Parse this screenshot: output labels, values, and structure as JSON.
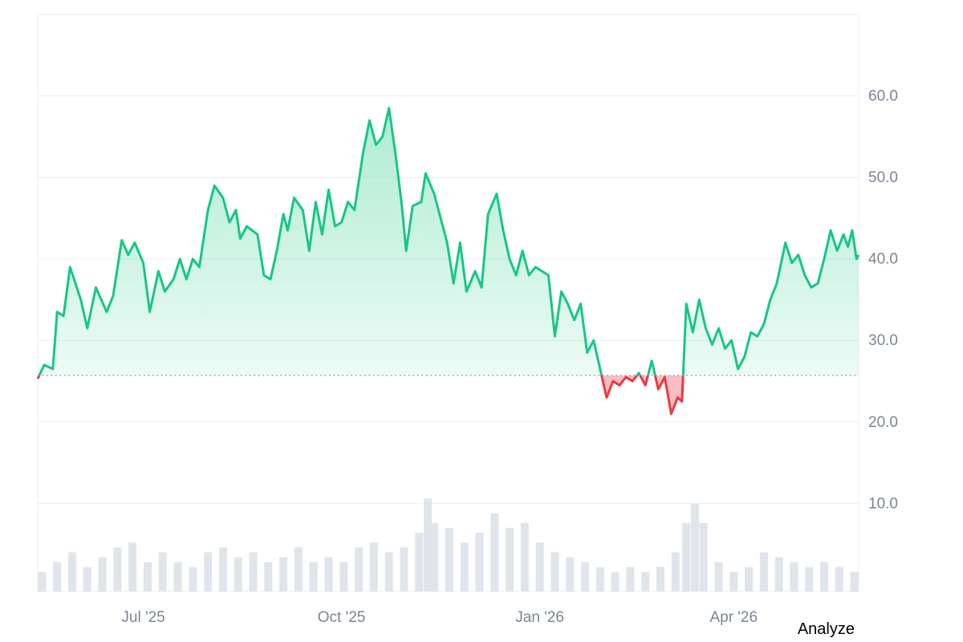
{
  "colors": {
    "up_line": "#16c784",
    "down_line": "#ea3943",
    "up_fill": "#16c784",
    "down_fill": "#ea3943",
    "grid": "#e9edf1",
    "baseline": "#8f98a3",
    "tick_text": "#7a8594",
    "volume": "#dfe5ea"
  },
  "footer": {
    "analyze_label": "Analyze"
  },
  "chart_data": {
    "type": "area",
    "title": "",
    "xlabel": "",
    "ylabel": "",
    "grid": true,
    "legend": "none",
    "ylim": [
      -0.8,
      70
    ],
    "y_ticks": [
      {
        "value": 10,
        "label": "10.0"
      },
      {
        "value": 20,
        "label": "20.0"
      },
      {
        "value": 30,
        "label": "30.0"
      },
      {
        "value": 40,
        "label": "40.0"
      },
      {
        "value": 50,
        "label": "50.0"
      },
      {
        "value": 60,
        "label": "60.0"
      }
    ],
    "xlim": [
      "2025-05-13",
      "2026-05-29"
    ],
    "x_ticks": [
      {
        "date": "2025-07-01",
        "label": "Jul '25"
      },
      {
        "date": "2025-10-01",
        "label": "Oct '25"
      },
      {
        "date": "2026-01-01",
        "label": "Jan '26"
      },
      {
        "date": "2026-04-01",
        "label": "Apr '26"
      }
    ],
    "baseline": 25.7,
    "series": [
      {
        "values": [
          [
            "2025-05-13",
            25.3
          ],
          [
            "2025-05-16",
            27.0
          ],
          [
            "2025-05-20",
            26.5
          ],
          [
            "2025-05-22",
            33.5
          ],
          [
            "2025-05-25",
            33.0
          ],
          [
            "2025-05-28",
            39.0
          ],
          [
            "2025-06-02",
            35.0
          ],
          [
            "2025-06-05",
            31.5
          ],
          [
            "2025-06-09",
            36.5
          ],
          [
            "2025-06-14",
            33.5
          ],
          [
            "2025-06-17",
            35.5
          ],
          [
            "2025-06-21",
            42.3
          ],
          [
            "2025-06-24",
            40.5
          ],
          [
            "2025-06-27",
            42.0
          ],
          [
            "2025-07-01",
            39.5
          ],
          [
            "2025-07-04",
            33.5
          ],
          [
            "2025-07-08",
            38.5
          ],
          [
            "2025-07-11",
            36.0
          ],
          [
            "2025-07-15",
            37.5
          ],
          [
            "2025-07-18",
            40.0
          ],
          [
            "2025-07-21",
            37.5
          ],
          [
            "2025-07-24",
            40.0
          ],
          [
            "2025-07-27",
            39.0
          ],
          [
            "2025-07-31",
            46.0
          ],
          [
            "2025-08-03",
            49.0
          ],
          [
            "2025-08-07",
            47.5
          ],
          [
            "2025-08-10",
            44.5
          ],
          [
            "2025-08-13",
            46.0
          ],
          [
            "2025-08-15",
            42.5
          ],
          [
            "2025-08-18",
            44.0
          ],
          [
            "2025-08-23",
            43.0
          ],
          [
            "2025-08-26",
            38.0
          ],
          [
            "2025-08-29",
            37.5
          ],
          [
            "2025-09-01",
            41.0
          ],
          [
            "2025-09-04",
            45.5
          ],
          [
            "2025-09-06",
            43.5
          ],
          [
            "2025-09-09",
            47.5
          ],
          [
            "2025-09-13",
            46.0
          ],
          [
            "2025-09-16",
            41.0
          ],
          [
            "2025-09-19",
            47.0
          ],
          [
            "2025-09-22",
            43.0
          ],
          [
            "2025-09-25",
            48.5
          ],
          [
            "2025-09-28",
            44.0
          ],
          [
            "2025-10-01",
            44.5
          ],
          [
            "2025-10-04",
            47.0
          ],
          [
            "2025-10-07",
            46.0
          ],
          [
            "2025-10-11",
            53.0
          ],
          [
            "2025-10-14",
            57.0
          ],
          [
            "2025-10-17",
            54.0
          ],
          [
            "2025-10-20",
            55.0
          ],
          [
            "2025-10-23",
            58.5
          ],
          [
            "2025-10-26",
            53.0
          ],
          [
            "2025-10-29",
            46.5
          ],
          [
            "2025-10-31",
            41.0
          ],
          [
            "2025-11-03",
            46.5
          ],
          [
            "2025-11-07",
            47.0
          ],
          [
            "2025-11-09",
            50.5
          ],
          [
            "2025-11-13",
            48.0
          ],
          [
            "2025-11-16",
            45.0
          ],
          [
            "2025-11-19",
            42.0
          ],
          [
            "2025-11-22",
            37.0
          ],
          [
            "2025-11-25",
            42.0
          ],
          [
            "2025-11-28",
            36.0
          ],
          [
            "2025-12-02",
            38.5
          ],
          [
            "2025-12-05",
            36.5
          ],
          [
            "2025-12-08",
            45.5
          ],
          [
            "2025-12-12",
            48.0
          ],
          [
            "2025-12-15",
            43.5
          ],
          [
            "2025-12-18",
            40.0
          ],
          [
            "2025-12-21",
            38.0
          ],
          [
            "2025-12-24",
            41.0
          ],
          [
            "2025-12-27",
            38.0
          ],
          [
            "2025-12-30",
            39.0
          ],
          [
            "2026-01-02",
            38.5
          ],
          [
            "2026-01-05",
            38.0
          ],
          [
            "2026-01-08",
            30.5
          ],
          [
            "2026-01-11",
            36.0
          ],
          [
            "2026-01-14",
            34.5
          ],
          [
            "2026-01-17",
            32.5
          ],
          [
            "2026-01-20",
            34.5
          ],
          [
            "2026-01-23",
            28.5
          ],
          [
            "2026-01-26",
            30.0
          ],
          [
            "2026-01-29",
            26.5
          ],
          [
            "2026-02-01",
            23.0
          ],
          [
            "2026-02-04",
            25.0
          ],
          [
            "2026-02-07",
            24.5
          ],
          [
            "2026-02-10",
            25.5
          ],
          [
            "2026-02-13",
            25.0
          ],
          [
            "2026-02-16",
            26.0
          ],
          [
            "2026-02-19",
            24.5
          ],
          [
            "2026-02-22",
            27.5
          ],
          [
            "2026-02-25",
            24.0
          ],
          [
            "2026-02-28",
            25.5
          ],
          [
            "2026-03-03",
            21.0
          ],
          [
            "2026-03-06",
            23.0
          ],
          [
            "2026-03-08",
            22.5
          ],
          [
            "2026-03-10",
            34.5
          ],
          [
            "2026-03-13",
            31.0
          ],
          [
            "2026-03-16",
            35.0
          ],
          [
            "2026-03-19",
            31.5
          ],
          [
            "2026-03-22",
            29.5
          ],
          [
            "2026-03-25",
            31.5
          ],
          [
            "2026-03-28",
            29.0
          ],
          [
            "2026-03-31",
            30.0
          ],
          [
            "2026-04-03",
            26.5
          ],
          [
            "2026-04-06",
            28.0
          ],
          [
            "2026-04-09",
            31.0
          ],
          [
            "2026-04-12",
            30.5
          ],
          [
            "2026-04-15",
            32.0
          ],
          [
            "2026-04-18",
            35.0
          ],
          [
            "2026-04-21",
            37.0
          ],
          [
            "2026-04-25",
            42.0
          ],
          [
            "2026-04-28",
            39.5
          ],
          [
            "2026-05-01",
            40.5
          ],
          [
            "2026-05-04",
            38.0
          ],
          [
            "2026-05-07",
            36.5
          ],
          [
            "2026-05-10",
            37.0
          ],
          [
            "2026-05-13",
            40.0
          ],
          [
            "2026-05-16",
            43.5
          ],
          [
            "2026-05-19",
            41.0
          ],
          [
            "2026-05-22",
            43.0
          ],
          [
            "2026-05-24",
            41.5
          ],
          [
            "2026-05-26",
            43.5
          ],
          [
            "2026-05-28",
            40.0
          ],
          [
            "2026-05-29",
            40.5
          ]
        ]
      }
    ],
    "volume": [
      [
        "2025-05-15",
        2
      ],
      [
        "2025-05-22",
        3
      ],
      [
        "2025-05-29",
        4
      ],
      [
        "2025-06-05",
        2.5
      ],
      [
        "2025-06-12",
        3.5
      ],
      [
        "2025-06-19",
        4.5
      ],
      [
        "2025-06-26",
        5
      ],
      [
        "2025-07-03",
        3
      ],
      [
        "2025-07-10",
        4
      ],
      [
        "2025-07-17",
        3
      ],
      [
        "2025-07-24",
        2.5
      ],
      [
        "2025-07-31",
        4
      ],
      [
        "2025-08-07",
        4.5
      ],
      [
        "2025-08-14",
        3.5
      ],
      [
        "2025-08-21",
        4
      ],
      [
        "2025-08-28",
        3
      ],
      [
        "2025-09-04",
        3.5
      ],
      [
        "2025-09-11",
        4.5
      ],
      [
        "2025-09-18",
        3
      ],
      [
        "2025-09-25",
        3.5
      ],
      [
        "2025-10-02",
        3
      ],
      [
        "2025-10-09",
        4.5
      ],
      [
        "2025-10-16",
        5
      ],
      [
        "2025-10-23",
        4
      ],
      [
        "2025-10-30",
        4.5
      ],
      [
        "2025-11-06",
        6
      ],
      [
        "2025-11-10",
        9.5
      ],
      [
        "2025-11-13",
        7
      ],
      [
        "2025-11-20",
        6.5
      ],
      [
        "2025-11-27",
        5
      ],
      [
        "2025-12-04",
        6
      ],
      [
        "2025-12-11",
        8
      ],
      [
        "2025-12-18",
        6.5
      ],
      [
        "2025-12-25",
        7
      ],
      [
        "2026-01-01",
        5
      ],
      [
        "2026-01-08",
        4
      ],
      [
        "2026-01-15",
        3.5
      ],
      [
        "2026-01-22",
        3
      ],
      [
        "2026-01-29",
        2.5
      ],
      [
        "2026-02-05",
        2
      ],
      [
        "2026-02-12",
        2.5
      ],
      [
        "2026-02-19",
        2
      ],
      [
        "2026-02-26",
        2.5
      ],
      [
        "2026-03-05",
        4
      ],
      [
        "2026-03-10",
        7
      ],
      [
        "2026-03-14",
        9
      ],
      [
        "2026-03-18",
        7
      ],
      [
        "2026-03-25",
        3
      ],
      [
        "2026-04-01",
        2
      ],
      [
        "2026-04-08",
        2.5
      ],
      [
        "2026-04-15",
        4
      ],
      [
        "2026-04-22",
        3.5
      ],
      [
        "2026-04-29",
        3
      ],
      [
        "2026-05-06",
        2.5
      ],
      [
        "2026-05-13",
        3
      ],
      [
        "2026-05-20",
        2.5
      ],
      [
        "2026-05-27",
        2
      ]
    ]
  }
}
